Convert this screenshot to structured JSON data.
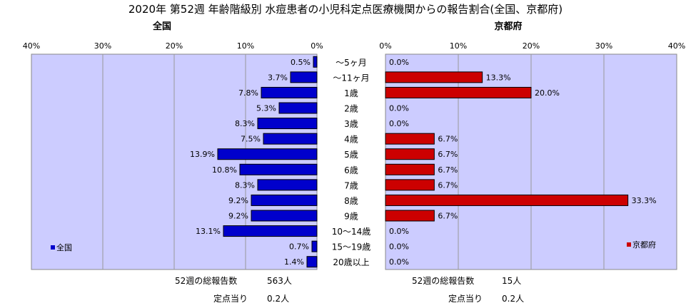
{
  "title": "2020年 第52週 年齢階級別 水痘患者の小児科定点医療機関からの報告割合(全国、京都府)",
  "categories": [
    "～5ヶ月",
    "～11ヶ月",
    "1歳",
    "2歳",
    "3歳",
    "4歳",
    "5歳",
    "6歳",
    "7歳",
    "8歳",
    "9歳",
    "10～14歳",
    "15～19歳",
    "20歳以上"
  ],
  "colors": {
    "plot_bg": "#ccccff",
    "national": "#0000cc",
    "kyoto": "#cc0000",
    "bar_stroke": "#000000"
  },
  "chart_data": [
    {
      "type": "bar",
      "orientation": "horizontal",
      "subtitle": "全国",
      "x_direction": "reversed",
      "xlim": [
        0,
        40
      ],
      "x_ticks": [
        "0%",
        "10%",
        "20%",
        "30%",
        "40%"
      ],
      "categories": [
        "～5ヶ月",
        "～11ヶ月",
        "1歳",
        "2歳",
        "3歳",
        "4歳",
        "5歳",
        "6歳",
        "7歳",
        "8歳",
        "9歳",
        "10～14歳",
        "15～19歳",
        "20歳以上"
      ],
      "series": [
        {
          "name": "全国",
          "values": [
            0.5,
            3.7,
            7.8,
            5.3,
            8.3,
            7.5,
            13.9,
            10.8,
            8.3,
            9.2,
            9.2,
            13.1,
            0.7,
            1.4
          ],
          "labels": [
            "0.5%",
            "3.7%",
            "7.8%",
            "5.3%",
            "8.3%",
            "7.5%",
            "13.9%",
            "10.8%",
            "8.3%",
            "9.2%",
            "9.2%",
            "13.1%",
            "0.7%",
            "1.4%"
          ]
        }
      ],
      "legend": "bottom-left",
      "grid": true,
      "footer": {
        "total_label": "52週の総報告数",
        "total_value": "563人",
        "per_label": "定点当り",
        "per_value": "0.2人"
      }
    },
    {
      "type": "bar",
      "orientation": "horizontal",
      "subtitle": "京都府",
      "xlim": [
        0,
        40
      ],
      "x_ticks": [
        "0%",
        "10%",
        "20%",
        "30%",
        "40%"
      ],
      "categories": [
        "～5ヶ月",
        "～11ヶ月",
        "1歳",
        "2歳",
        "3歳",
        "4歳",
        "5歳",
        "6歳",
        "7歳",
        "8歳",
        "9歳",
        "10～14歳",
        "15～19歳",
        "20歳以上"
      ],
      "series": [
        {
          "name": "京都府",
          "values": [
            0.0,
            13.3,
            20.0,
            0.0,
            0.0,
            6.7,
            6.7,
            6.7,
            6.7,
            33.3,
            6.7,
            0.0,
            0.0,
            0.0
          ],
          "labels": [
            "0.0%",
            "13.3%",
            "20.0%",
            "0.0%",
            "0.0%",
            "6.7%",
            "6.7%",
            "6.7%",
            "6.7%",
            "33.3%",
            "6.7%",
            "0.0%",
            "0.0%",
            "0.0%"
          ]
        }
      ],
      "legend": "bottom-right",
      "grid": true,
      "footer": {
        "total_label": "52週の総報告数",
        "total_value": "15人",
        "per_label": "定点当り",
        "per_value": "0.2人"
      }
    }
  ]
}
